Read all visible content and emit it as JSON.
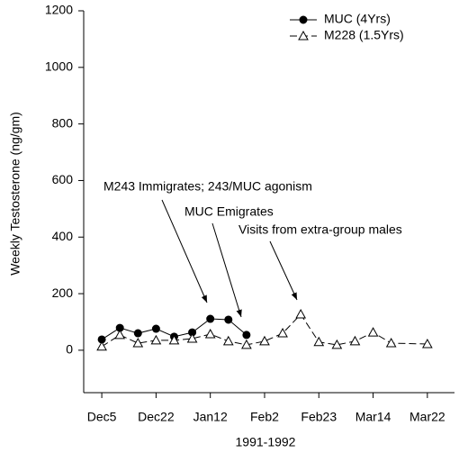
{
  "chart_data": {
    "type": "line",
    "y_label": "Weekly Testosterone (ng/gm)",
    "x_label": "1991-1992",
    "xlim": [
      -1,
      19.5
    ],
    "xticks": [
      {
        "value": 0,
        "label": "Dec5"
      },
      {
        "value": 3,
        "label": "Dec22"
      },
      {
        "value": 6,
        "label": "Jan12"
      },
      {
        "value": 9,
        "label": "Feb2"
      },
      {
        "value": 12,
        "label": "Feb23"
      },
      {
        "value": 15,
        "label": "Mar14"
      },
      {
        "value": 18,
        "label": "Mar22"
      }
    ],
    "ylim": [
      -150,
      1200
    ],
    "yticks": [
      0,
      200,
      400,
      600,
      800,
      1000,
      1200
    ],
    "legend": "upper right",
    "series": [
      {
        "name": "MUC (4Yrs)",
        "color": "#000000",
        "marker": "filled-circle",
        "dash": false,
        "x": [
          0,
          1,
          2,
          3,
          4,
          5,
          6,
          7,
          8
        ],
        "values": [
          38,
          79,
          60,
          76,
          48,
          63,
          111,
          108,
          54
        ]
      },
      {
        "name": "M228 (1.5Yrs)",
        "color": "#000000",
        "marker": "open-triangle",
        "dash": true,
        "x": [
          0,
          1,
          2,
          3,
          4,
          5,
          6,
          7,
          8,
          9,
          10,
          11,
          12,
          13,
          14,
          15,
          16,
          18
        ],
        "values": [
          13,
          54,
          25,
          35,
          35,
          41,
          57,
          32,
          19,
          32,
          60,
          127,
          29,
          19,
          32,
          63,
          25,
          22
        ]
      }
    ],
    "annotations": [
      {
        "text": "M243 Immigrates; 243/MUC agonism"
      },
      {
        "text": "MUC Emigrates"
      },
      {
        "text": "Visits from extra-group males"
      }
    ]
  }
}
